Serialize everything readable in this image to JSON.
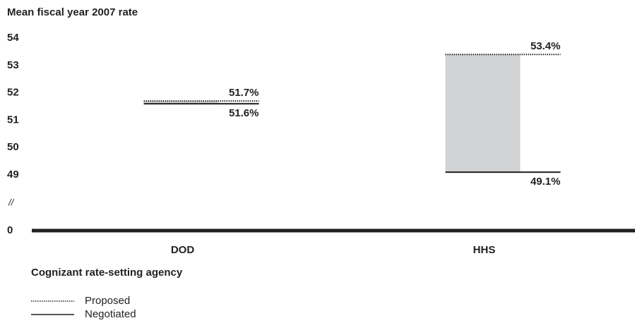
{
  "chart_data": {
    "type": "range-line",
    "title": "Mean fiscal year 2007 rate",
    "xlabel": "Cognizant rate-setting agency",
    "categories": [
      "DOD",
      "HHS"
    ],
    "series": [
      {
        "name": "Proposed",
        "color": "#231f20",
        "style": "dotted",
        "values": [
          51.7,
          53.4
        ],
        "value_labels": [
          "51.7%",
          "53.4%"
        ]
      },
      {
        "name": "Negotiated",
        "color": "#231f20",
        "style": "solid",
        "values": [
          51.6,
          49.1
        ],
        "value_labels": [
          "51.6%",
          "49.1%"
        ]
      }
    ],
    "fill_color": "#d1d2d4",
    "ylim": [
      0,
      54
    ],
    "axis_break": [
      0,
      49
    ],
    "yticks": [
      0,
      49,
      50,
      51,
      52,
      53,
      54
    ],
    "grid": false,
    "legend": "bottom-left"
  }
}
